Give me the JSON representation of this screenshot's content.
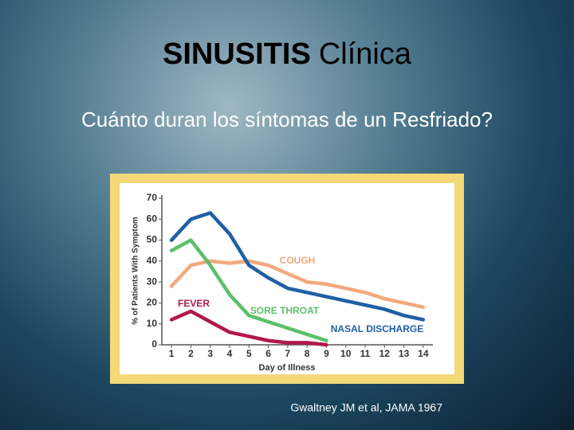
{
  "slide": {
    "title_bold": "SINUSITIS",
    "title_rest": "Clínica",
    "subtitle": "Cuánto duran los síntomas de un Resfriado?",
    "citation": "Gwaltney JM et al, JAMA 1967"
  },
  "chart_data": {
    "type": "line",
    "x_label": "Day of Illness",
    "y_label": "% of Patients With Symptom",
    "x": [
      1,
      2,
      3,
      4,
      5,
      6,
      7,
      8,
      9,
      10,
      11,
      12,
      13,
      14
    ],
    "xlim": [
      0.5,
      14.5
    ],
    "xticks": [
      1,
      2,
      3,
      4,
      5,
      6,
      7,
      8,
      9,
      10,
      11,
      12,
      13,
      14
    ],
    "ylim": [
      0,
      70
    ],
    "yticks": [
      0,
      10,
      20,
      30,
      40,
      50,
      60,
      70
    ],
    "grid": false,
    "series": [
      {
        "name": "NASAL DISCHARGE",
        "color": "#1f5fa6",
        "values": [
          50,
          60,
          63,
          53,
          38,
          32,
          27,
          25,
          23,
          21,
          19,
          17,
          14,
          12
        ]
      },
      {
        "name": "COUGH",
        "color": "#f2a97c",
        "values": [
          28,
          38,
          40,
          39,
          40,
          38,
          34,
          30,
          29,
          27,
          25,
          22,
          20,
          18
        ]
      },
      {
        "name": "SORE THROAT",
        "color": "#5cbf6a",
        "values": [
          45,
          50,
          38,
          24,
          14,
          11,
          8,
          5,
          2,
          null,
          null,
          null,
          null,
          null
        ]
      },
      {
        "name": "FEVER",
        "color": "#b0194a",
        "values": [
          12,
          16,
          11,
          6,
          4,
          2,
          1,
          1,
          0,
          null,
          null,
          null,
          null,
          null
        ]
      }
    ]
  }
}
